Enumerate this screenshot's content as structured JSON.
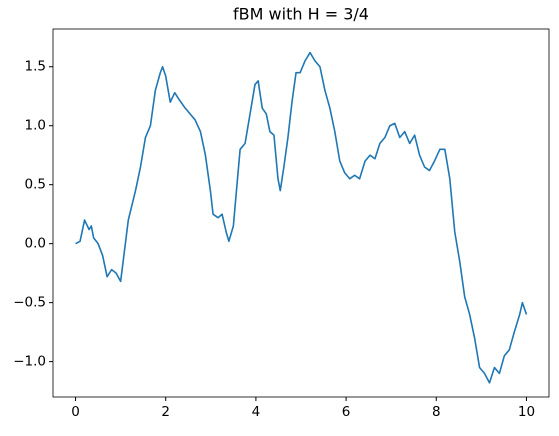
{
  "chart_data": {
    "type": "line",
    "title": "fBM with H = 3/4",
    "x": [
      0,
      0.1,
      0.2,
      0.3,
      0.35,
      0.4,
      0.5,
      0.6,
      0.7,
      0.8,
      0.9,
      1.0,
      1.17,
      1.33,
      1.44,
      1.55,
      1.66,
      1.77,
      1.88,
      1.93,
      2.0,
      2.1,
      2.2,
      2.3,
      2.43,
      2.54,
      2.65,
      2.77,
      2.88,
      2.99,
      3.05,
      3.16,
      3.25,
      3.34,
      3.4,
      3.5,
      3.58,
      3.65,
      3.76,
      3.87,
      3.98,
      4.05,
      4.14,
      4.23,
      4.31,
      4.4,
      4.49,
      4.54,
      4.62,
      4.71,
      4.8,
      4.89,
      4.98,
      5.09,
      5.2,
      5.31,
      5.42,
      5.53,
      5.64,
      5.75,
      5.86,
      5.97,
      6.08,
      6.19,
      6.3,
      6.42,
      6.53,
      6.64,
      6.75,
      6.86,
      6.97,
      7.08,
      7.19,
      7.3,
      7.41,
      7.52,
      7.63,
      7.74,
      7.85,
      7.96,
      8.08,
      8.19,
      8.3,
      8.41,
      8.52,
      8.63,
      8.74,
      8.85,
      8.96,
      9.07,
      9.18,
      9.29,
      9.4,
      9.51,
      9.62,
      9.73,
      9.85,
      9.91,
      10.0
    ],
    "series": [
      {
        "color": "#1f77b4",
        "values": [
          0,
          0.02,
          0.2,
          0.12,
          0.15,
          0.05,
          0.0,
          -0.1,
          -0.28,
          -0.22,
          -0.25,
          -0.32,
          0.2,
          0.45,
          0.65,
          0.9,
          1.0,
          1.3,
          1.45,
          1.5,
          1.42,
          1.2,
          1.28,
          1.22,
          1.15,
          1.1,
          1.05,
          0.95,
          0.75,
          0.45,
          0.25,
          0.22,
          0.25,
          0.1,
          0.02,
          0.15,
          0.5,
          0.8,
          0.85,
          1.1,
          1.35,
          1.38,
          1.15,
          1.1,
          0.95,
          0.92,
          0.55,
          0.45,
          0.65,
          0.9,
          1.2,
          1.45,
          1.45,
          1.55,
          1.62,
          1.55,
          1.5,
          1.3,
          1.15,
          0.95,
          0.7,
          0.6,
          0.55,
          0.58,
          0.55,
          0.7,
          0.75,
          0.72,
          0.85,
          0.9,
          1.0,
          1.02,
          0.9,
          0.95,
          0.85,
          0.92,
          0.75,
          0.65,
          0.62,
          0.7,
          0.8,
          0.8,
          0.55,
          0.1,
          -0.15,
          -0.45,
          -0.6,
          -0.8,
          -1.05,
          -1.1,
          -1.18,
          -1.05,
          -1.1,
          -0.95,
          -0.9,
          -0.75,
          -0.6,
          -0.5,
          -0.6
        ]
      }
    ],
    "xlim": [
      -0.5,
      10.5
    ],
    "xticks": [
      0,
      2,
      4,
      6,
      8,
      10
    ],
    "ylim": [
      -1.3,
      1.82
    ],
    "yticks": [
      {
        "value": -1,
        "label": "−1.0"
      },
      {
        "value": -0.5,
        "label": "−0.5"
      },
      {
        "value": 0,
        "label": "0.0"
      },
      0.5,
      {
        "value": 1,
        "label": "1.0"
      },
      1.5
    ]
  }
}
